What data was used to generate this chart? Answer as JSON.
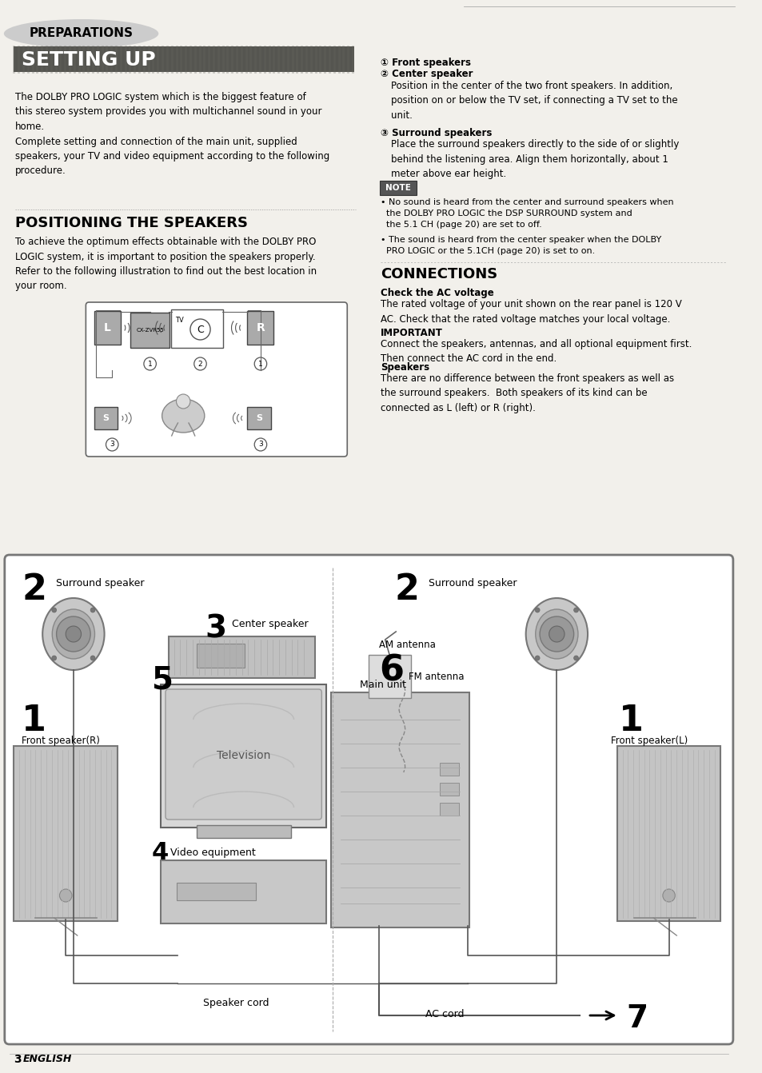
{
  "page_bg": "#f2f0eb",
  "preparations_text": "PREPARATIONS",
  "setting_up_text": "SETTING UP",
  "body1": "The DOLBY PRO LOGIC system which is the biggest feature of\nthis stereo system provides you with multichannel sound in your\nhome.\nComplete setting and connection of the main unit, supplied\nspeakers, your TV and video equipment according to the following\nprocedure.",
  "positioning_heading": "POSITIONING THE SPEAKERS",
  "positioning_body": "To achieve the optimum effects obtainable with the DOLBY PRO\nLOGIC system, it is important to position the speakers properly.\nRefer to the following illustration to find out the best location in\nyour room.",
  "front_spk": "① Front speakers",
  "center_spk_head": "② Center speaker",
  "center_spk_body": "Position in the center of the two front speakers. In addition,\nposition on or below the TV set, if connecting a TV set to the\nunit.",
  "surround_spk_head": "③ Surround speakers",
  "surround_spk_body": "Place the surround speakers directly to the side of or slightly\nbehind the listening area. Align them horizontally, about 1\nmeter above ear height.",
  "note_label": "NOTE",
  "note1": "• No sound is heard from the center and surround speakers when\n  the DOLBY PRO LOGIC the DSP SURROUND system and\n  the 5.1 CH (page 20) are set to off.",
  "note2": "• The sound is heard from the center speaker when the DOLBY\n  PRO LOGIC or the 5.1CH (page 20) is set to on.",
  "connections_head": "CONNECTIONS",
  "check_ac_head": "Check the AC voltage",
  "check_ac_body": "The rated voltage of your unit shown on the rear panel is 120 V\nAC. Check that the rated voltage matches your local voltage.",
  "important_head": "IMPORTANT",
  "important_body": "Connect the speakers, antennas, and all optional equipment first.\nThen connect the AC cord in the end.",
  "speakers_head": "Speakers",
  "speakers_body": "There are no difference between the front speakers as well as\nthe surround speakers.  Both speakers of its kind can be\nconnected as L (left) or R (right).",
  "footer": "3  ENGLISH",
  "diag_surround_l": "Surround speaker",
  "diag_surround_r": "Surround speaker",
  "diag_center": "Center speaker",
  "diag_tv_label": "Television",
  "diag_front_r": "Front speaker(R)",
  "diag_front_l": "Front speaker(L)",
  "diag_video": "Video equipment",
  "diag_main": "Main unit",
  "diag_am": "AM antenna",
  "diag_fm": "FM antenna",
  "diag_spk_cord": "Speaker cord",
  "diag_ac_cord": "AC cord"
}
